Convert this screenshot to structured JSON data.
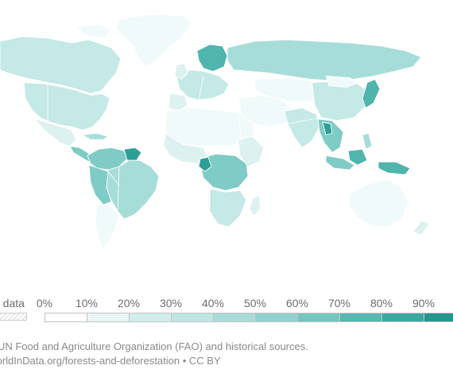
{
  "legend": {
    "no_data_label": "o data",
    "ticks": [
      "0%",
      "10%",
      "20%",
      "30%",
      "40%",
      "50%",
      "60%",
      "70%",
      "80%",
      "90%"
    ],
    "colors": [
      "#ffffff",
      "#eaf6f6",
      "#d1eeec",
      "#bee6e3",
      "#a8dcd8",
      "#90d2cd",
      "#74c6c0",
      "#56b8b1",
      "#3aa9a1",
      "#26968e",
      "#1f8a83"
    ]
  },
  "source": {
    "line1": "ce: UN Food and Agriculture Organization (FAO) and historical sources.",
    "line2": "/orldInData.org/forests-and-deforestation • CC BY"
  },
  "map_colors": {
    "low": "#f1fafa",
    "light": "#dcf1f0",
    "mid": "#c4e9e6",
    "midhigh": "#a7ddd9",
    "high": "#7fcbc5",
    "veryhigh": "#4fb5ad",
    "dark": "#2e9f97",
    "none": "#f4f4f4"
  }
}
